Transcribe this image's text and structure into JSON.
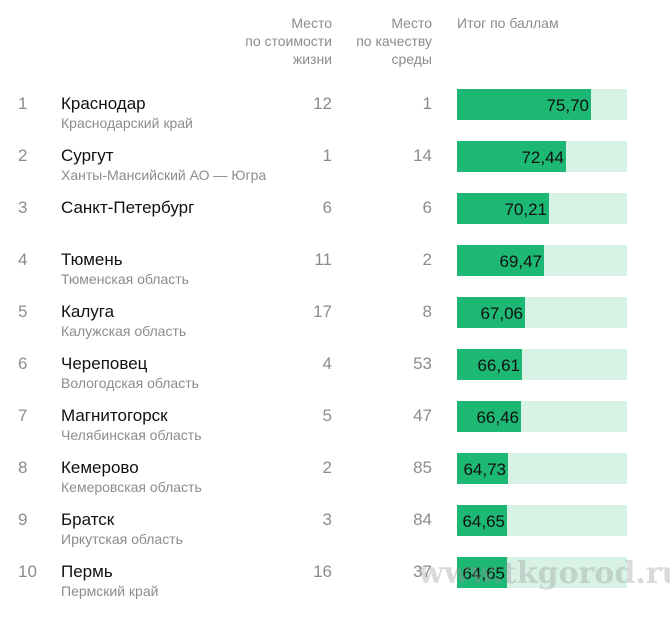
{
  "header": {
    "cost_label": "Место\nпо стоимости\nжизни",
    "env_label": "Место\nпо качеству\nсреды",
    "total_label": "Итог по баллам"
  },
  "bar_scale_max": 100,
  "colors": {
    "bar_fill": "#1db874",
    "bar_track": "#d8f3e6"
  },
  "rows": [
    {
      "rank": "1",
      "city": "Краснодар",
      "region": "Краснодарский край",
      "cost": "12",
      "env": "1",
      "score": "75,70",
      "score_value": 75.7
    },
    {
      "rank": "2",
      "city": "Сургут",
      "region": "Ханты-Мансийский АО — Югра",
      "cost": "1",
      "env": "14",
      "score": "72,44",
      "score_value": 72.44
    },
    {
      "rank": "3",
      "city": "Санкт-Петербург",
      "region": "",
      "cost": "6",
      "env": "6",
      "score": "70,21",
      "score_value": 70.21
    },
    {
      "rank": "4",
      "city": "Тюмень",
      "region": "Тюменская область",
      "cost": "11",
      "env": "2",
      "score": "69,47",
      "score_value": 69.47
    },
    {
      "rank": "5",
      "city": "Калуга",
      "region": "Калужская область",
      "cost": "17",
      "env": "8",
      "score": "67,06",
      "score_value": 67.06
    },
    {
      "rank": "6",
      "city": "Череповец",
      "region": "Вологодская область",
      "cost": "4",
      "env": "53",
      "score": "66,61",
      "score_value": 66.61
    },
    {
      "rank": "7",
      "city": "Магнитогорск",
      "region": "Челябинская область",
      "cost": "5",
      "env": "47",
      "score": "66,46",
      "score_value": 66.46
    },
    {
      "rank": "8",
      "city": "Кемерово",
      "region": "Кемеровская область",
      "cost": "2",
      "env": "85",
      "score": "64,73",
      "score_value": 64.73
    },
    {
      "rank": "9",
      "city": "Братск",
      "region": "Иркутская область",
      "cost": "3",
      "env": "84",
      "score": "64,65",
      "score_value": 64.65
    },
    {
      "rank": "10",
      "city": "Пермь",
      "region": "Пермский край",
      "cost": "16",
      "env": "37",
      "score": "64,65",
      "score_value": 64.65
    }
  ],
  "watermark": "www.tkgorod.ru"
}
